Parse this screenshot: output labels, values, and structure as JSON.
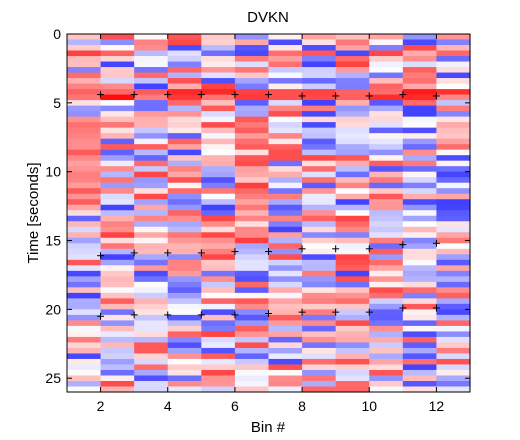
{
  "chart_data": {
    "type": "heatmap",
    "title": "DVKN",
    "xlabel": "Bin #",
    "ylabel": "Time [seconds]",
    "xlim": [
      1,
      13
    ],
    "ylim": [
      0,
      26
    ],
    "y_reversed": true,
    "x_ticks": [
      2,
      4,
      6,
      8,
      10,
      12
    ],
    "y_ticks": [
      0,
      5,
      10,
      15,
      20,
      25
    ],
    "columns": 12,
    "rows": 65,
    "colormap": [
      "#0000ff",
      "#ffffff",
      "#ff0000"
    ],
    "value_range": [
      -1,
      1
    ],
    "markers": [
      {
        "bin": 2,
        "time": 4.4
      },
      {
        "bin": 3,
        "time": 4.4
      },
      {
        "bin": 4,
        "time": 4.4
      },
      {
        "bin": 5,
        "time": 4.4
      },
      {
        "bin": 6,
        "time": 4.4
      },
      {
        "bin": 7,
        "time": 4.4
      },
      {
        "bin": 8,
        "time": 4.5
      },
      {
        "bin": 9,
        "time": 4.5
      },
      {
        "bin": 10,
        "time": 4.5
      },
      {
        "bin": 11,
        "time": 4.4
      },
      {
        "bin": 12,
        "time": 4.5
      },
      {
        "bin": 2,
        "time": 16.1
      },
      {
        "bin": 3,
        "time": 15.9
      },
      {
        "bin": 4,
        "time": 15.9
      },
      {
        "bin": 5,
        "time": 15.9
      },
      {
        "bin": 6,
        "time": 15.8
      },
      {
        "bin": 7,
        "time": 15.8
      },
      {
        "bin": 8,
        "time": 15.6
      },
      {
        "bin": 9,
        "time": 15.6
      },
      {
        "bin": 10,
        "time": 15.6
      },
      {
        "bin": 11,
        "time": 15.3
      },
      {
        "bin": 12,
        "time": 15.2
      },
      {
        "bin": 2,
        "time": 20.5
      },
      {
        "bin": 3,
        "time": 20.4
      },
      {
        "bin": 4,
        "time": 20.4
      },
      {
        "bin": 5,
        "time": 20.4
      },
      {
        "bin": 6,
        "time": 20.4
      },
      {
        "bin": 7,
        "time": 20.3
      },
      {
        "bin": 8,
        "time": 20.2
      },
      {
        "bin": 9,
        "time": 20.2
      },
      {
        "bin": 10,
        "time": 20.2
      },
      {
        "bin": 11,
        "time": 19.9
      },
      {
        "bin": 12,
        "time": 19.9
      }
    ],
    "grid": false,
    "legend": "none"
  }
}
